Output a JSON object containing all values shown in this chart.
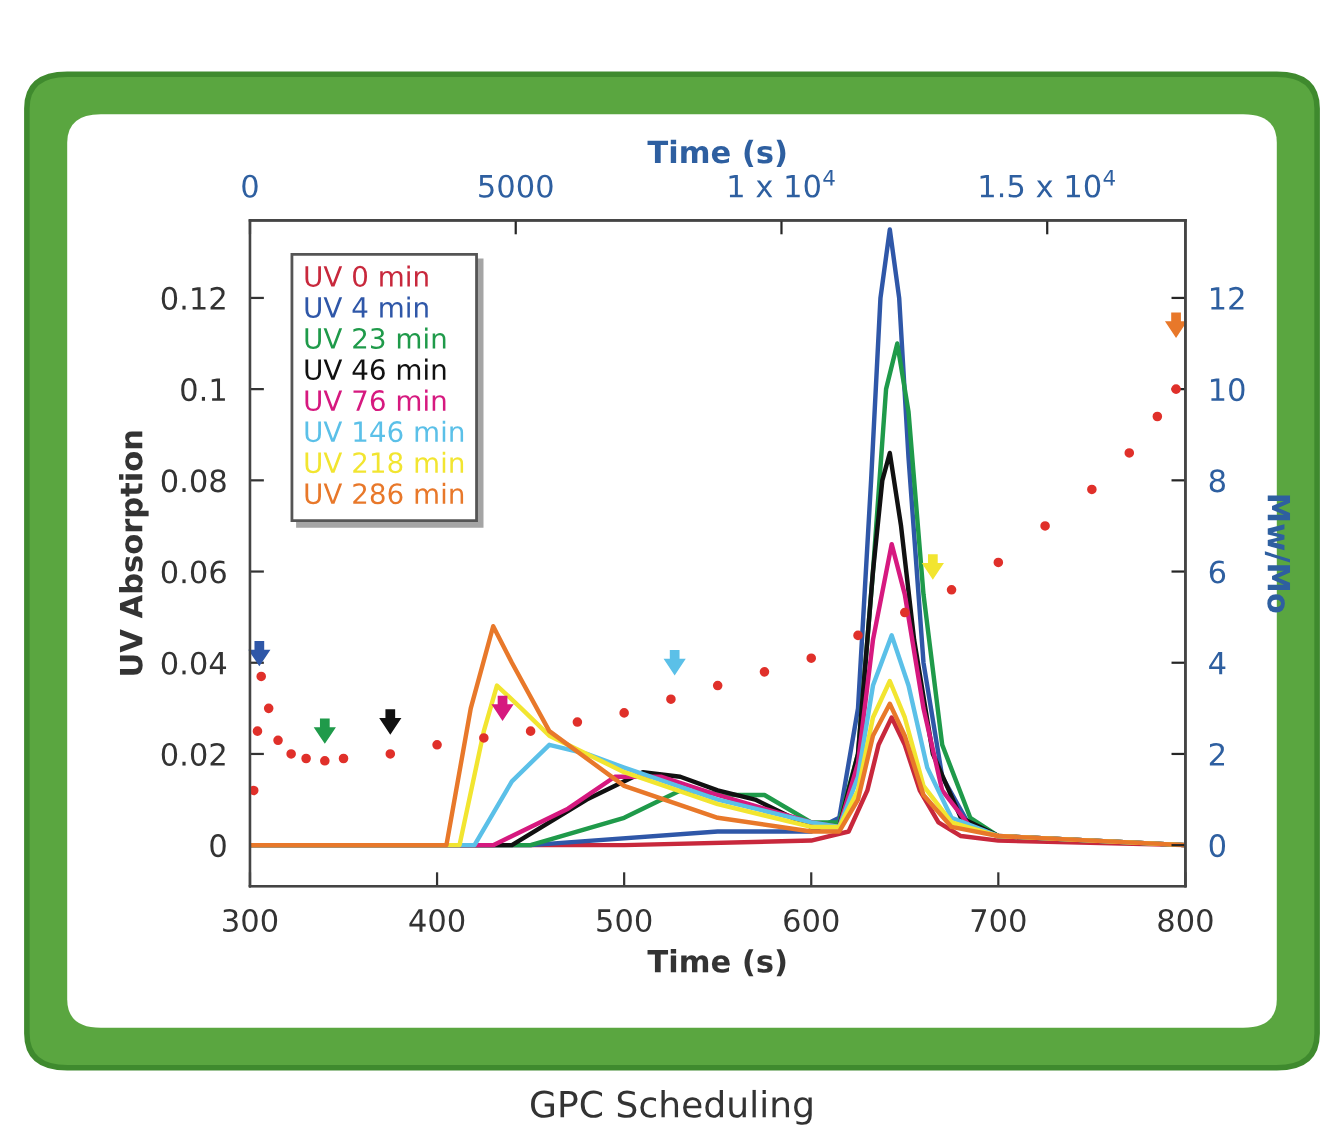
{
  "chart_data": {
    "type": "line",
    "xlabel": "Time (s)",
    "ylabel": "UV Absorption",
    "y2label": "Mw/Mo",
    "x2label": "Time (s)",
    "xlim": [
      300,
      800
    ],
    "xticks": [
      300,
      400,
      500,
      600,
      700,
      800
    ],
    "ylim": [
      -0.009,
      0.137
    ],
    "yticks": [
      0,
      0.02,
      0.04,
      0.06,
      0.08,
      0.1,
      0.12
    ],
    "y2lim": [
      -0.9,
      13.7
    ],
    "y2ticks": [
      0,
      2,
      4,
      6,
      8,
      10,
      12
    ],
    "x2lim": [
      0,
      17600
    ],
    "x2ticks": [
      0,
      5000,
      {
        "value": 10000,
        "label": "1 x 10$^{4}$"
      },
      {
        "value": 15000,
        "label": "1.5 x 10$^{4}$"
      }
    ],
    "legend": "top left",
    "grid": false,
    "annotations": [
      "GPC Scheduling"
    ],
    "series": [
      {
        "name": "UV 0 min",
        "color": "#c8283c",
        "x": [
          300,
          400,
          500,
          600,
          620,
          630,
          636,
          643,
          650,
          658,
          668,
          680,
          700,
          800
        ],
        "values": [
          0,
          0,
          0,
          0.001,
          0.003,
          0.012,
          0.022,
          0.028,
          0.022,
          0.012,
          0.005,
          0.002,
          0.001,
          0
        ]
      },
      {
        "name": "UV 4 min",
        "color": "#2f57a8",
        "x": [
          300,
          450,
          550,
          600,
          615,
          625,
          632,
          637,
          642,
          647,
          652,
          660,
          670,
          685,
          700,
          800
        ],
        "values": [
          0,
          0,
          0.003,
          0.003,
          0.006,
          0.03,
          0.08,
          0.12,
          0.135,
          0.12,
          0.085,
          0.04,
          0.015,
          0.004,
          0.002,
          0
        ]
      },
      {
        "name": "UV 23 min",
        "color": "#1f9a4a",
        "x": [
          300,
          450,
          500,
          530,
          560,
          575,
          600,
          615,
          625,
          633,
          640,
          646,
          652,
          660,
          670,
          685,
          700,
          800
        ],
        "values": [
          0,
          0,
          0.006,
          0.012,
          0.011,
          0.011,
          0.005,
          0.005,
          0.02,
          0.06,
          0.1,
          0.11,
          0.095,
          0.055,
          0.022,
          0.006,
          0.002,
          0
        ]
      },
      {
        "name": "UV 46 min",
        "color": "#111111",
        "x": [
          300,
          440,
          480,
          510,
          530,
          550,
          570,
          600,
          615,
          625,
          633,
          638,
          642,
          648,
          655,
          665,
          680,
          700,
          800
        ],
        "values": [
          0,
          0,
          0.01,
          0.016,
          0.015,
          0.012,
          0.01,
          0.004,
          0.004,
          0.02,
          0.06,
          0.08,
          0.086,
          0.07,
          0.045,
          0.02,
          0.006,
          0.002,
          0
        ]
      },
      {
        "name": "UV 76 min",
        "color": "#d6197f",
        "x": [
          300,
          430,
          470,
          495,
          520,
          550,
          600,
          615,
          625,
          633,
          643,
          650,
          660,
          670,
          685,
          700,
          800
        ],
        "values": [
          0,
          0,
          0.008,
          0.015,
          0.015,
          0.011,
          0.005,
          0.004,
          0.018,
          0.045,
          0.066,
          0.055,
          0.03,
          0.012,
          0.004,
          0.002,
          0
        ]
      },
      {
        "name": "UV 146 min",
        "color": "#5bc0e8",
        "x": [
          300,
          420,
          440,
          460,
          480,
          500,
          550,
          600,
          615,
          625,
          633,
          643,
          652,
          662,
          675,
          700,
          800
        ],
        "values": [
          0,
          0,
          0.014,
          0.022,
          0.02,
          0.017,
          0.01,
          0.005,
          0.004,
          0.015,
          0.035,
          0.046,
          0.035,
          0.017,
          0.006,
          0.002,
          0
        ]
      },
      {
        "name": "UV 218 min",
        "color": "#f2e530",
        "x": [
          300,
          412,
          425,
          432,
          445,
          460,
          500,
          550,
          600,
          615,
          625,
          633,
          642,
          650,
          660,
          675,
          700,
          800
        ],
        "values": [
          0,
          0,
          0.025,
          0.035,
          0.03,
          0.024,
          0.016,
          0.009,
          0.004,
          0.004,
          0.012,
          0.028,
          0.036,
          0.028,
          0.013,
          0.005,
          0.002,
          0
        ]
      },
      {
        "name": "UV 286 min",
        "color": "#e8782a",
        "x": [
          300,
          405,
          418,
          430,
          440,
          460,
          500,
          550,
          600,
          615,
          625,
          633,
          642,
          650,
          660,
          675,
          700,
          800
        ],
        "values": [
          0,
          0,
          0.03,
          0.048,
          0.04,
          0.025,
          0.013,
          0.006,
          0.003,
          0.003,
          0.01,
          0.024,
          0.031,
          0.024,
          0.011,
          0.004,
          0.002,
          0
        ]
      },
      {
        "type": "scatter",
        "axis": "y2",
        "marker": "circle",
        "color": "#e0302a",
        "x": [
          302,
          304,
          306,
          310,
          315,
          322,
          330,
          340,
          350,
          375,
          400,
          425,
          450,
          475,
          500,
          525,
          550,
          575,
          600,
          625,
          650,
          675,
          700,
          725,
          750,
          770,
          785,
          795
        ],
        "values": [
          1.2,
          2.5,
          3.7,
          3.0,
          2.3,
          2.0,
          1.9,
          1.85,
          1.9,
          2.0,
          2.2,
          2.35,
          2.5,
          2.7,
          2.9,
          3.2,
          3.5,
          3.8,
          4.1,
          4.6,
          5.1,
          5.6,
          6.2,
          7.0,
          7.8,
          8.6,
          9.4,
          10.0
        ]
      }
    ]
  }
}
